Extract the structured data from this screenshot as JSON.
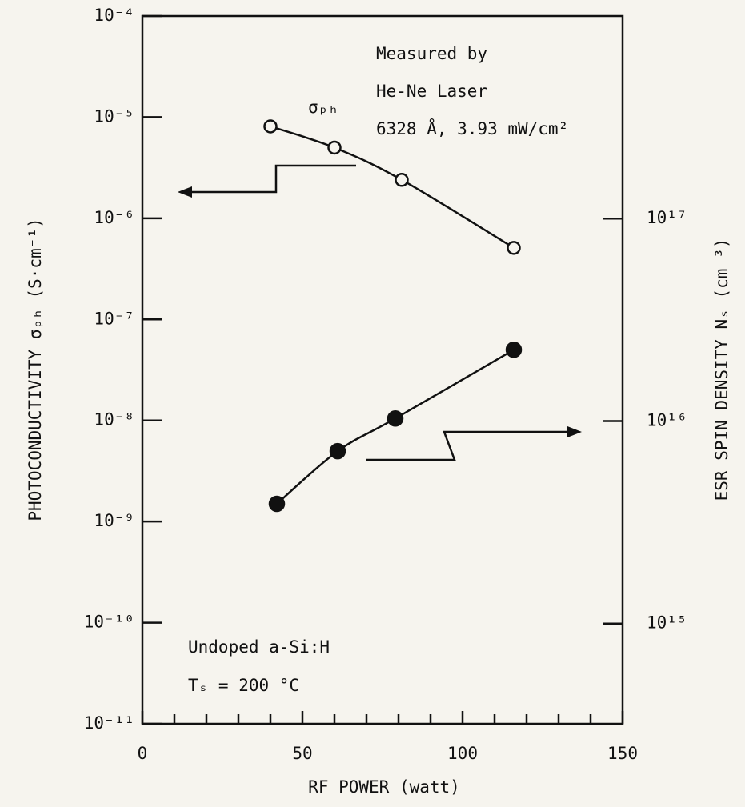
{
  "chart_data": {
    "type": "scatter",
    "x_label": "RF  POWER  (watt)",
    "y_label": "PHOTOCONDUCTIVITY  σₚₕ  (S·cm⁻¹)",
    "y2_label": "ESR SPIN DENSITY  Nₛ  (cm⁻³)",
    "xlim": [
      0,
      150
    ],
    "xticks": [
      0,
      50,
      100,
      150
    ],
    "xminorticks": [
      10,
      20,
      30,
      40,
      60,
      70,
      80,
      90,
      110,
      120,
      130,
      140
    ],
    "ylim": [
      1e-11,
      0.0001
    ],
    "ylog": true,
    "yticks": [
      {
        "value": 1e-11,
        "label": "10⁻¹¹"
      },
      {
        "value": 1e-10,
        "label": "10⁻¹⁰"
      },
      {
        "value": 1e-09,
        "label": "10⁻⁹"
      },
      {
        "value": 1e-08,
        "label": "10⁻⁸"
      },
      {
        "value": 1e-07,
        "label": "10⁻⁷"
      },
      {
        "value": 1e-06,
        "label": "10⁻⁶"
      },
      {
        "value": 1e-05,
        "label": "10⁻⁵"
      },
      {
        "value": 0.0001,
        "label": "10⁻⁴"
      }
    ],
    "y2lim": [
      320000000000000.0,
      1e+18
    ],
    "y2log": true,
    "y2ticks": [
      {
        "value": 1000000000000000.0,
        "label": "10¹⁵"
      },
      {
        "value": 1e+16,
        "label": "10¹⁶"
      },
      {
        "value": 1e+17,
        "label": "10¹⁷"
      }
    ],
    "series": [
      {
        "marker": "open",
        "color": "#111111",
        "x": [
          40,
          60,
          81,
          116
        ],
        "values": [
          8.1e-06,
          5e-06,
          2.4e-06,
          5.1e-07
        ]
      },
      {
        "marker": "filled",
        "color": "#111111",
        "axis": "y2",
        "x": [
          42,
          61,
          79,
          116
        ],
        "values": [
          3900000000000000.0,
          7100000000000000.0,
          1.03e+16,
          2.25e+16
        ]
      }
    ],
    "annotations": [
      "Measured by",
      "He-Ne Laser",
      "6328 Å, 3.93 mW/cm²",
      "σₚₕ",
      "Undoped a-Si:H",
      "Tₛ = 200 °C"
    ]
  }
}
